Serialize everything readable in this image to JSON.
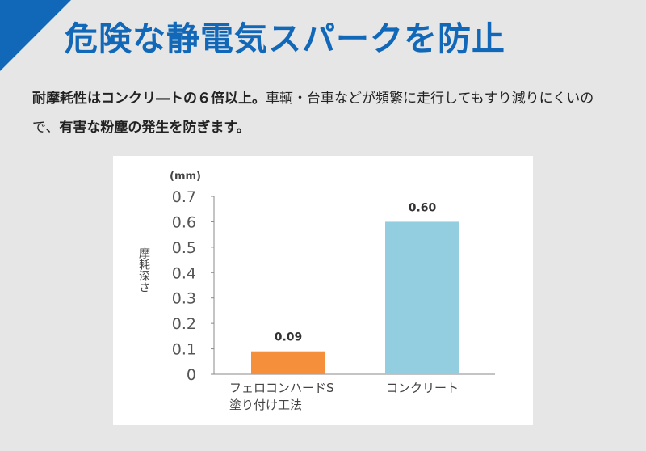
{
  "header": {
    "title": "危険な静電気スパークを防止",
    "accent_color": "#1268b8"
  },
  "description": {
    "part1_bold": "耐摩耗性はコンクリ―トの６倍以上。",
    "part2": "車輌・台車などが頻繁に走行してもすり減りにくいので、",
    "part3_bold": "有害な粉塵の発生を防ぎます。"
  },
  "chart_data": {
    "type": "bar",
    "unit_label": "(mm)",
    "ylabel": "摩耗深さ",
    "ylim": [
      0,
      0.7
    ],
    "yticks": [
      "0",
      "0.1",
      "0.2",
      "0.3",
      "0.4",
      "0.5",
      "0.6",
      "0.7"
    ],
    "categories": [
      [
        "フェロコンハードS",
        "塗り付け工法"
      ],
      [
        "コンクリート"
      ]
    ],
    "values": [
      0.09,
      0.6
    ],
    "value_labels": [
      "0.09",
      "0.60"
    ],
    "colors": [
      "#f58f3c",
      "#92cde0"
    ],
    "grid": false
  }
}
